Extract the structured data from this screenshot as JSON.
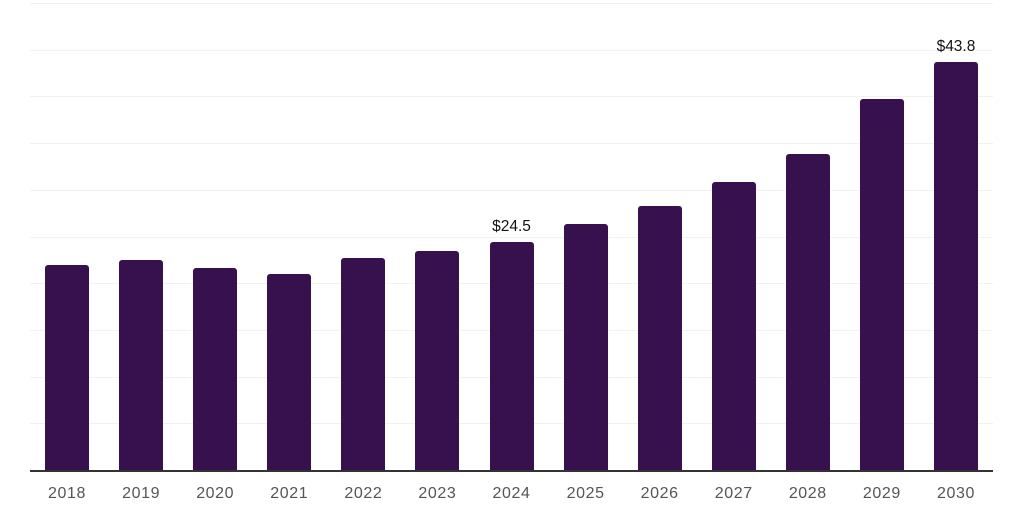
{
  "chart_data": {
    "type": "bar",
    "title": "",
    "xlabel": "",
    "ylabel": "",
    "categories": [
      "2018",
      "2019",
      "2020",
      "2021",
      "2022",
      "2023",
      "2024",
      "2025",
      "2026",
      "2027",
      "2028",
      "2029",
      "2030"
    ],
    "values": [
      22.1,
      22.6,
      21.7,
      21.1,
      22.8,
      23.6,
      24.5,
      26.4,
      28.4,
      30.9,
      33.9,
      39.8,
      43.8
    ],
    "data_labels": [
      {
        "category": "2024",
        "text": "$24.5"
      },
      {
        "category": "2030",
        "text": "$43.8"
      }
    ],
    "ylim": [
      0,
      50
    ],
    "y_gridline_step": 5,
    "grid": "horizontal",
    "y_tick_labels_visible": false,
    "legend_position": "none",
    "colors": {
      "bar": "#36114E",
      "axis_line": "#333333",
      "gridline": "#f2f2f2",
      "x_tick_label": "#555555",
      "data_label": "#111111",
      "background": "#ffffff"
    }
  }
}
